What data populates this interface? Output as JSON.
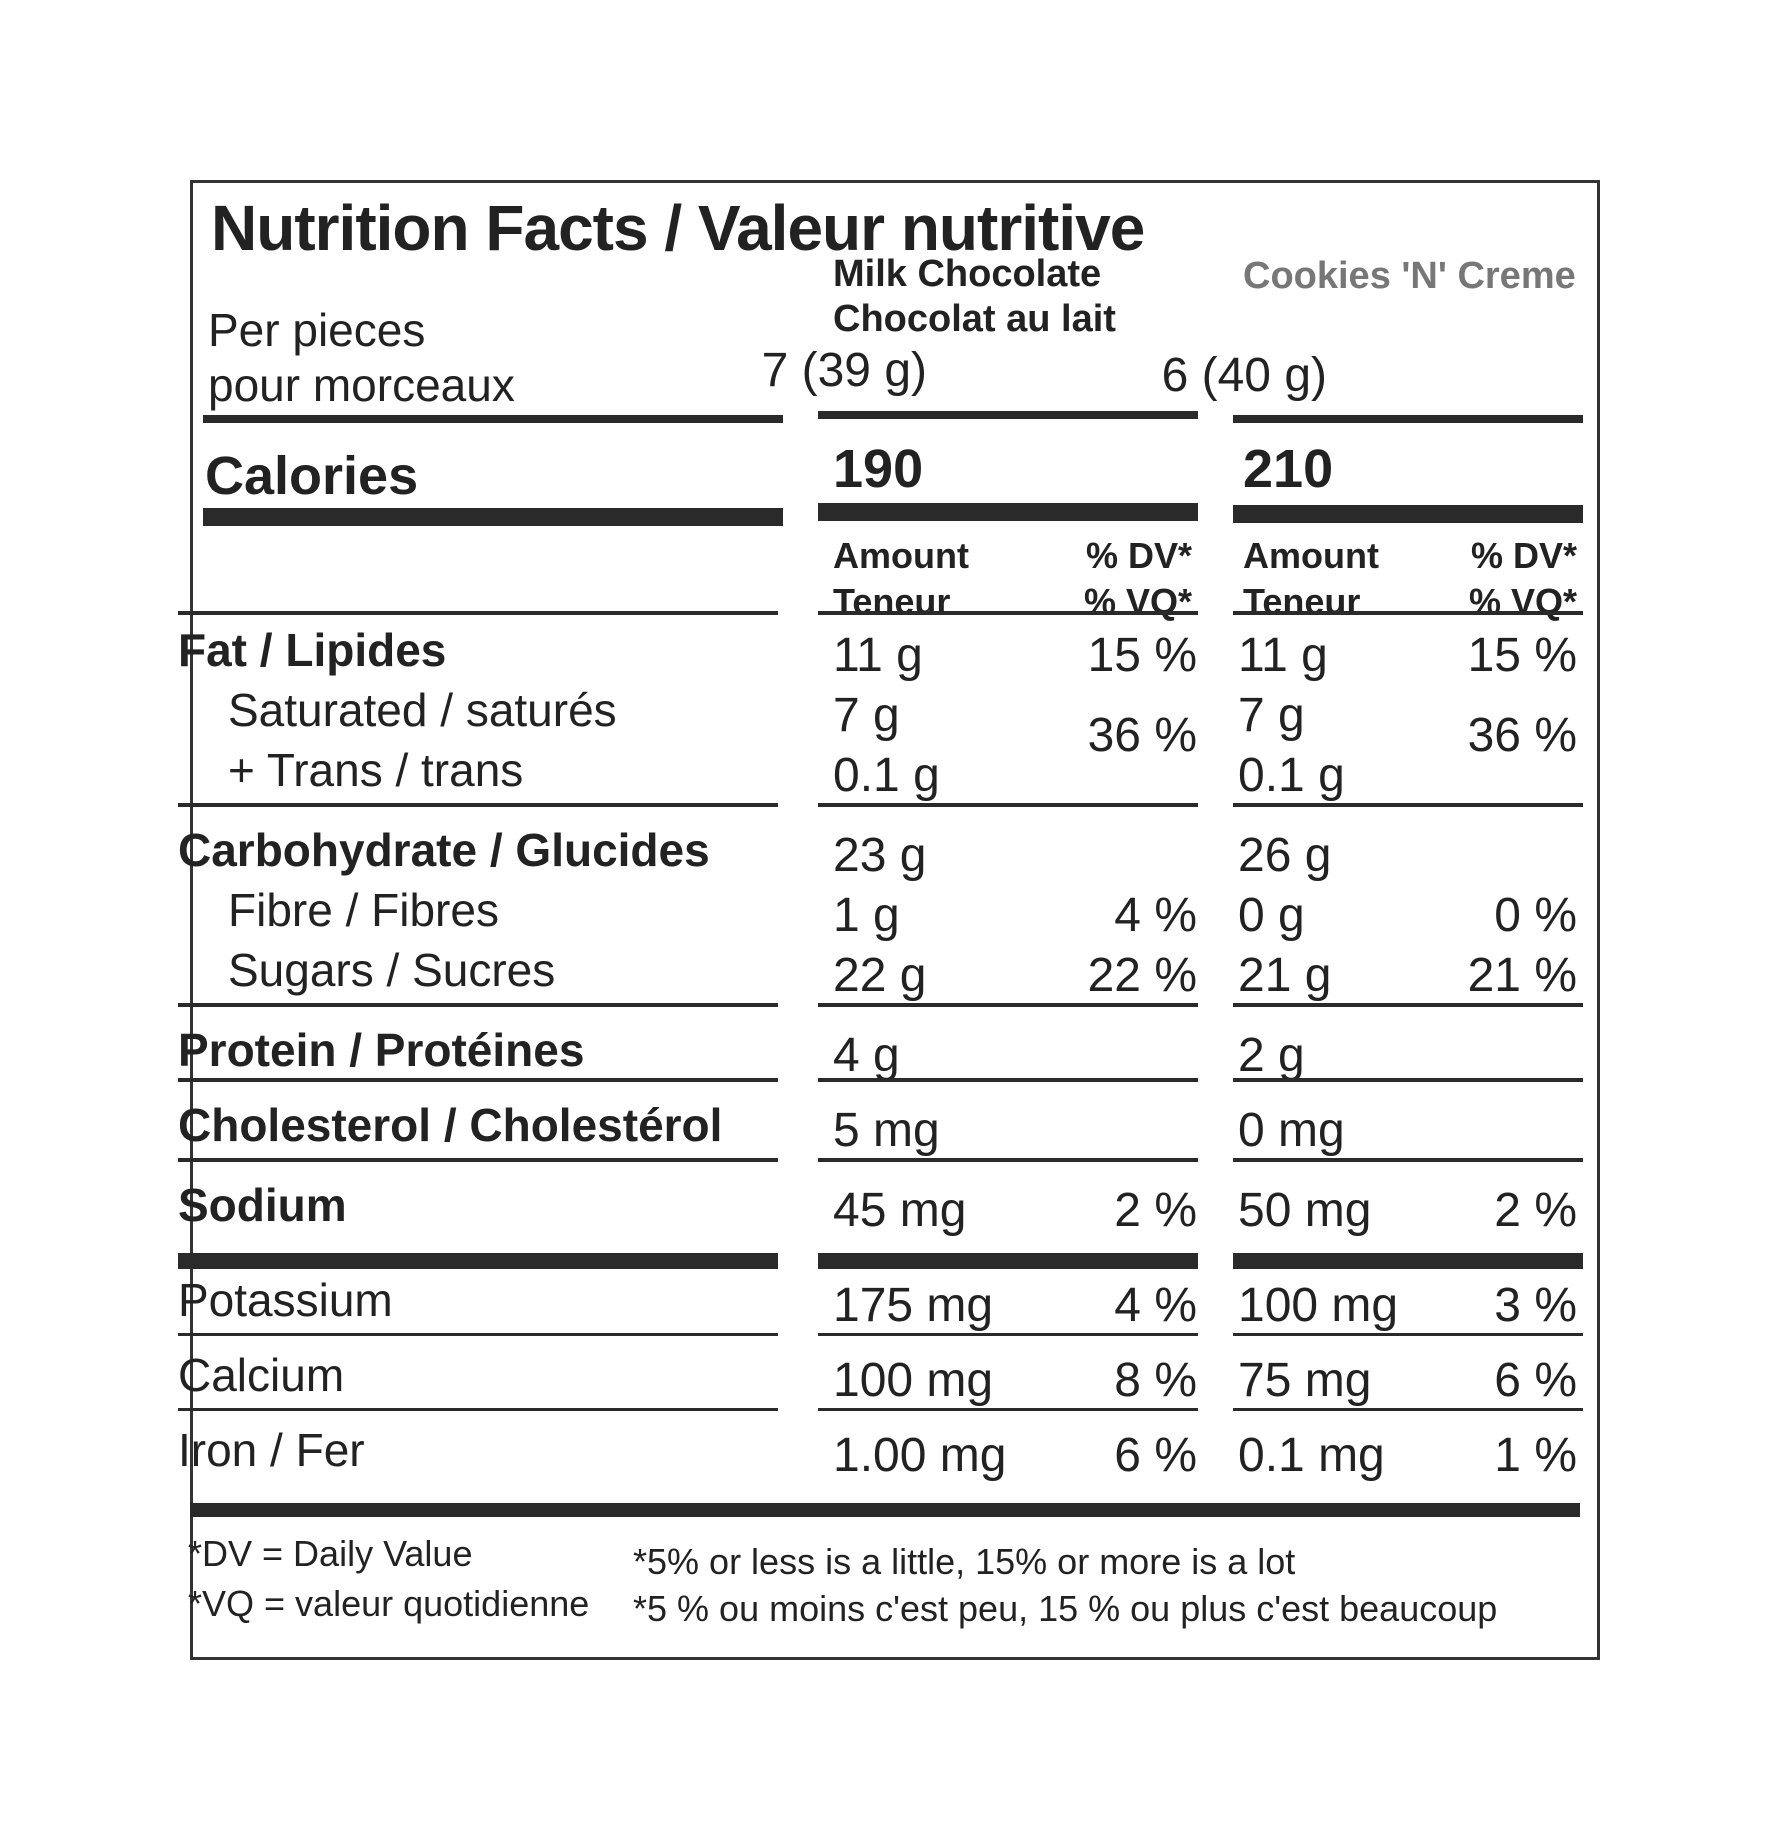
{
  "title": "Nutrition Facts / Valeur nutritive",
  "serving_label": [
    "Per pieces",
    "pour morceaux"
  ],
  "products": [
    {
      "name": [
        "Milk Chocolate",
        "Chocolat au lait"
      ],
      "serving": "7 (39 g)",
      "calories": "190"
    },
    {
      "name": [
        "Cookies 'N' Creme"
      ],
      "serving": "6 (40 g)",
      "calories": "210"
    }
  ],
  "calories_label": "Calories",
  "col_headers": {
    "amount": [
      "Amount",
      "Teneur"
    ],
    "dv": [
      "% DV*",
      "% VQ*"
    ]
  },
  "nutrients": [
    {
      "label": "Fat / Lipides",
      "bold": true,
      "p1": "11 g",
      "p1dv": "15 %",
      "p2": "11 g",
      "p2dv": "15 %"
    },
    {
      "label": "Saturated / saturés",
      "p1": "7 g",
      "p2": "7 g"
    },
    {
      "label": "+ Trans / trans",
      "p1": "0.1 g",
      "p2": "0.1 g",
      "p1dv_combined": "36 %",
      "p2dv_combined": "36 %"
    },
    {
      "label": "Carbohydrate / Glucides",
      "bold": true,
      "p1": "23 g",
      "p2": "26 g"
    },
    {
      "label": "Fibre / Fibres",
      "p1": "1 g",
      "p1dv": "4 %",
      "p2": "0 g",
      "p2dv": "0 %"
    },
    {
      "label": "Sugars / Sucres",
      "p1": "22 g",
      "p1dv": "22 %",
      "p2": "21 g",
      "p2dv": "21 %"
    },
    {
      "label": "Protein / Protéines",
      "bold": true,
      "p1": "4 g",
      "p2": "2 g"
    },
    {
      "label": "Cholesterol / Cholestérol",
      "bold": true,
      "p1": "5 mg",
      "p2": "0 mg"
    },
    {
      "label": "Sodium",
      "bold": true,
      "p1": "45 mg",
      "p1dv": "2 %",
      "p2": "50 mg",
      "p2dv": "2 %"
    },
    {
      "label": "Potassium",
      "p1": "175 mg",
      "p1dv": "4 %",
      "p2": "100 mg",
      "p2dv": "3 %"
    },
    {
      "label": "Calcium",
      "p1": "100 mg",
      "p1dv": "8 %",
      "p2": "75 mg",
      "p2dv": "6 %"
    },
    {
      "label": "Iron / Fer",
      "p1": "1.00 mg",
      "p1dv": "6 %",
      "p2": "0.1 mg",
      "p2dv": "1 %"
    }
  ],
  "footnotes": {
    "dv": "*DV = Daily Value",
    "vq": "*VQ = valeur quotidienne",
    "en": "*5% or less is a little, 15% or more is a lot",
    "fr": "*5 % ou moins c'est peu, 15 % ou plus c'est beaucoup"
  }
}
